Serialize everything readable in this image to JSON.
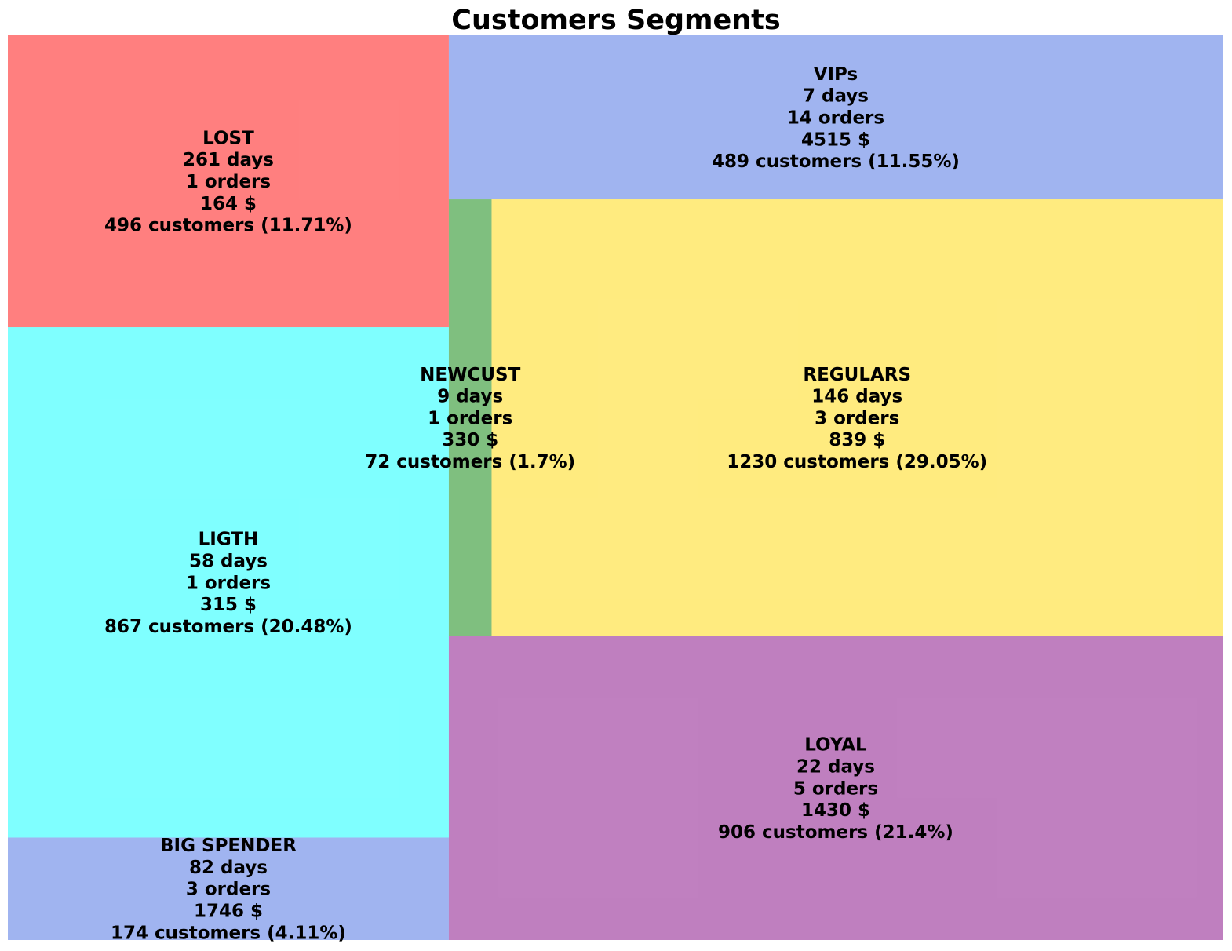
{
  "chart_data": {
    "type": "treemap",
    "title": "Customers Segments",
    "segments": [
      {
        "name": "LOST",
        "days": 261,
        "orders": 1,
        "spend": 164,
        "customers": 496,
        "pct": 11.71,
        "color": "#FF0000",
        "lines": [
          "LOST",
          "261 days",
          "1 orders",
          "164 $",
          "496 customers (11.71%)"
        ]
      },
      {
        "name": "LIGTH",
        "days": 58,
        "orders": 1,
        "spend": 315,
        "customers": 867,
        "pct": 20.48,
        "color": "#00FFFF",
        "lines": [
          "LIGTH",
          "58 days",
          "1 orders",
          "315 $",
          "867 customers (20.48%)"
        ]
      },
      {
        "name": "BIG SPENDER",
        "days": 82,
        "orders": 3,
        "spend": 1746,
        "customers": 174,
        "pct": 4.11,
        "color": "#4169E1",
        "lines": [
          "BIG SPENDER",
          "82 days",
          "3 orders",
          "1746 $",
          "174 customers (4.11%)"
        ]
      },
      {
        "name": "VIPs",
        "days": 7,
        "orders": 14,
        "spend": 4515,
        "customers": 489,
        "pct": 11.55,
        "color": "#4169E1",
        "lines": [
          "VIPs",
          "7 days",
          "14 orders",
          "4515 $",
          "489 customers (11.55%)"
        ]
      },
      {
        "name": "NEWCUST",
        "days": 9,
        "orders": 1,
        "spend": 330,
        "customers": 72,
        "pct": 1.7,
        "color": "#008000",
        "lines": [
          "NEWCUST",
          "9 days",
          "1 orders",
          "330 $",
          "72 customers (1.7%)"
        ]
      },
      {
        "name": "REGULARS",
        "days": 146,
        "orders": 3,
        "spend": 839,
        "customers": 1230,
        "pct": 29.05,
        "color": "#FFD700",
        "lines": [
          "REGULARS",
          "146 days",
          "3 orders",
          "839 $",
          "1230 customers (29.05%)"
        ]
      },
      {
        "name": "LOYAL",
        "days": 22,
        "orders": 5,
        "spend": 1430,
        "customers": 906,
        "pct": 21.4,
        "color": "#800080",
        "lines": [
          "LOYAL",
          "22 days",
          "5 orders",
          "1430 $",
          "906 customers (21.4%)"
        ]
      }
    ]
  }
}
